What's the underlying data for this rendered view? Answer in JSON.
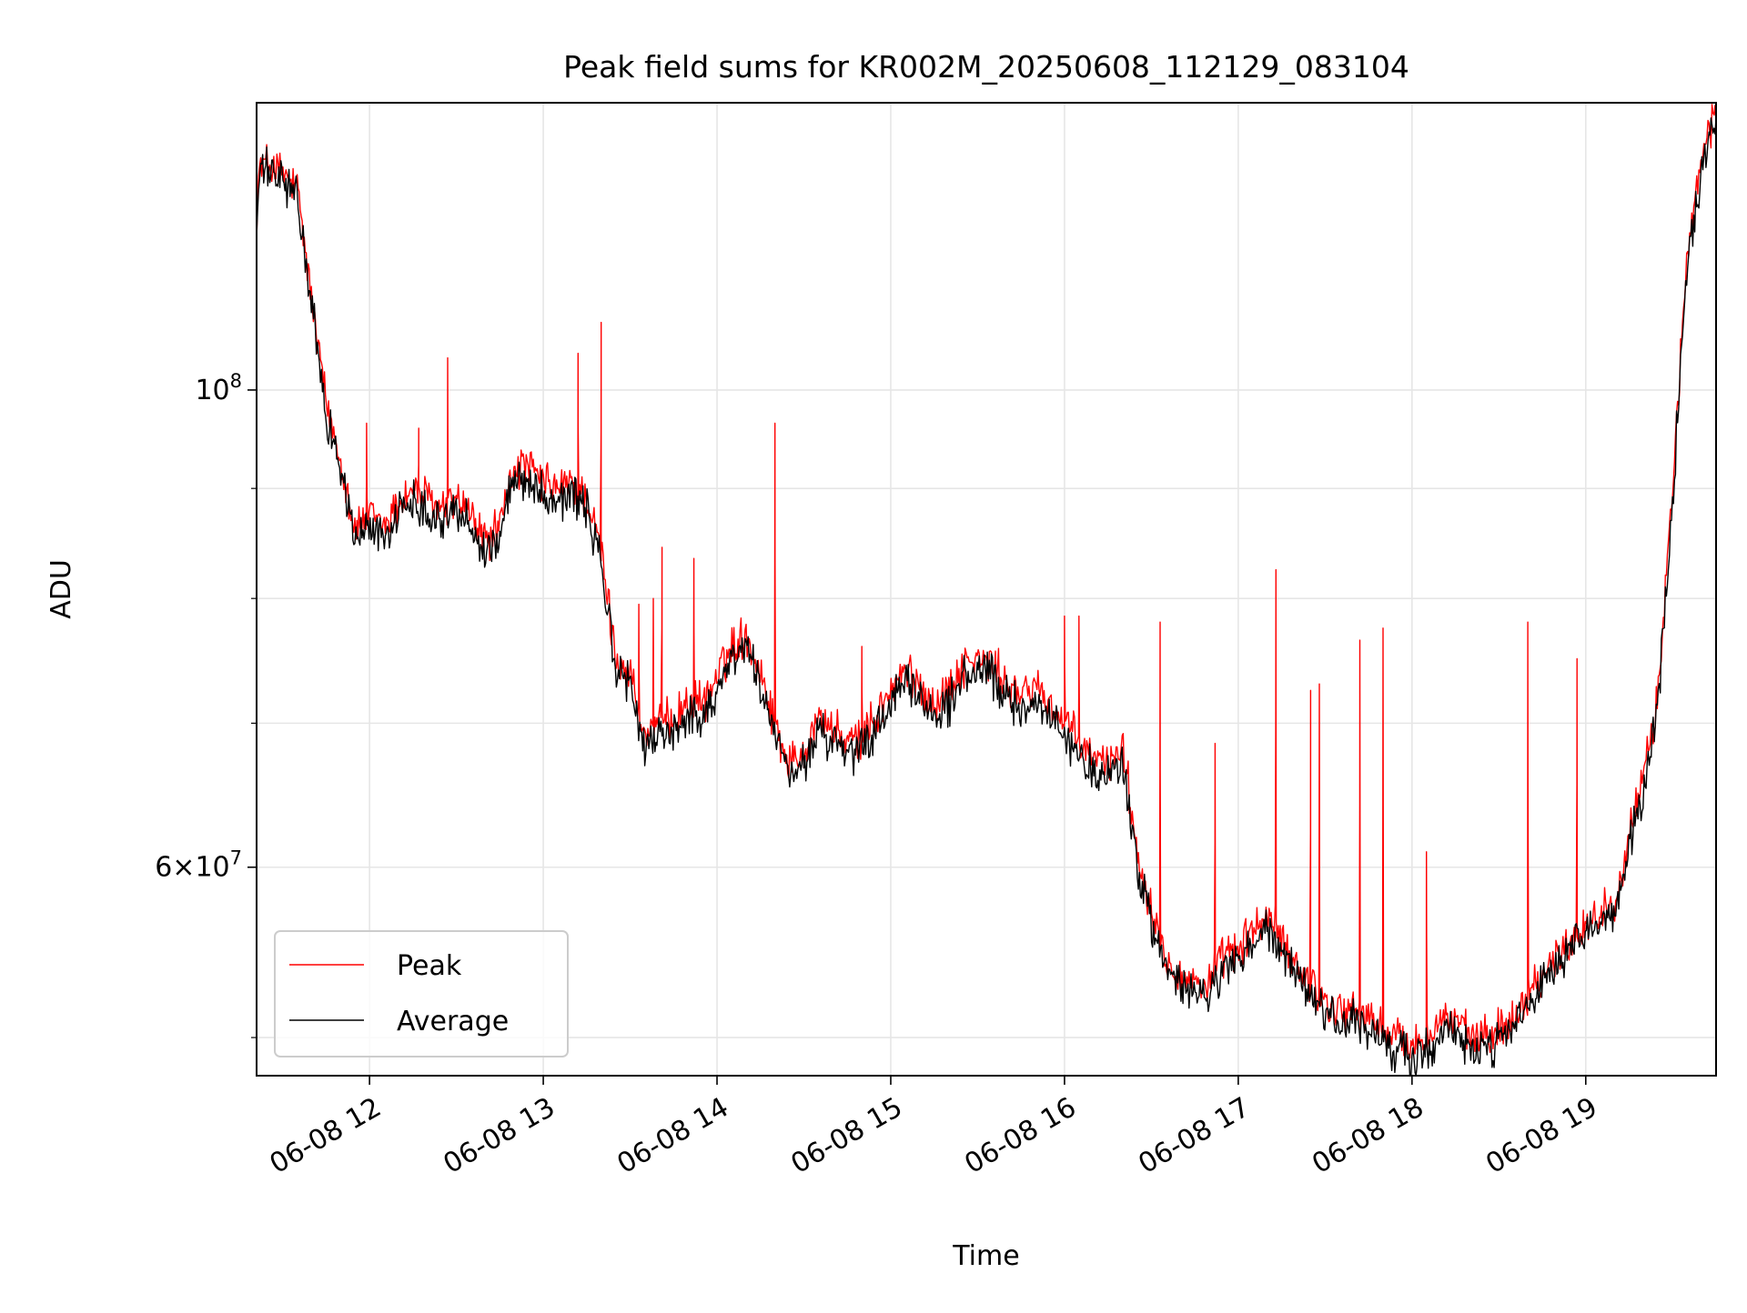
{
  "chart_data": {
    "type": "line",
    "title": "Peak field sums for KR002M_20250608_112129_083104",
    "xlabel": "Time",
    "ylabel": "ADU",
    "x_axis": "datetime",
    "x_range": [
      "2025-06-08T11:21:00",
      "2025-06-08T19:45:00"
    ],
    "x_ticks": [
      {
        "t": "2025-06-08T12:00",
        "label": "06-08 12"
      },
      {
        "t": "2025-06-08T13:00",
        "label": "06-08 13"
      },
      {
        "t": "2025-06-08T14:00",
        "label": "06-08 14"
      },
      {
        "t": "2025-06-08T15:00",
        "label": "06-08 15"
      },
      {
        "t": "2025-06-08T16:00",
        "label": "06-08 16"
      },
      {
        "t": "2025-06-08T17:00",
        "label": "06-08 17"
      },
      {
        "t": "2025-06-08T18:00",
        "label": "06-08 18"
      },
      {
        "t": "2025-06-08T19:00",
        "label": "06-08 19"
      }
    ],
    "y_scale": "log",
    "ylim": [
      48000000,
      136000000
    ],
    "y_major_ticks": [
      {
        "value": 100000000,
        "base": "10",
        "exp": "8"
      },
      {
        "value": 60000000,
        "base": "6×10",
        "exp": "7"
      }
    ],
    "y_minor_ticks": [
      50000000,
      70000000,
      80000000,
      90000000
    ],
    "grid": true,
    "legend_position": "lower-left",
    "series": [
      {
        "name": "Peak",
        "color": "#ff0000",
        "x": [
          "11:21",
          "11:22",
          "11:25",
          "11:30",
          "11:35",
          "11:40",
          "11:45",
          "11:50",
          "11:55",
          "12:00",
          "12:05",
          "12:10",
          "12:15",
          "12:20",
          "12:25",
          "12:30",
          "12:35",
          "12:40",
          "12:45",
          "12:50",
          "12:55",
          "13:00",
          "13:05",
          "13:10",
          "13:15",
          "13:20",
          "13:25",
          "13:30",
          "13:35",
          "13:40",
          "13:45",
          "13:50",
          "13:55",
          "14:00",
          "14:05",
          "14:10",
          "14:15",
          "14:20",
          "14:25",
          "14:30",
          "14:35",
          "14:40",
          "14:45",
          "14:50",
          "14:55",
          "15:00",
          "15:05",
          "15:10",
          "15:15",
          "15:20",
          "15:25",
          "15:30",
          "15:35",
          "15:40",
          "15:45",
          "15:50",
          "15:55",
          "16:00",
          "16:05",
          "16:10",
          "16:15",
          "16:20",
          "16:25",
          "16:30",
          "16:35",
          "16:40",
          "16:45",
          "16:50",
          "16:55",
          "17:00",
          "17:05",
          "17:10",
          "17:15",
          "17:20",
          "17:25",
          "17:30",
          "17:35",
          "17:40",
          "17:45",
          "17:50",
          "17:55",
          "18:00",
          "18:05",
          "18:10",
          "18:15",
          "18:20",
          "18:25",
          "18:30",
          "18:35",
          "18:40",
          "18:45",
          "18:50",
          "18:55",
          "19:00",
          "19:05",
          "19:10",
          "19:15",
          "19:20",
          "19:25",
          "19:30",
          "19:35",
          "19:40",
          "19:45"
        ],
        "values": [
          120000000,
          127000000,
          127500000,
          126000000,
          124000000,
          110000000,
          98500000,
          93000000,
          86000000,
          87500000,
          86500000,
          88500000,
          90000000,
          89000000,
          88000000,
          89000000,
          87500000,
          85000000,
          86500000,
          92000000,
          92000000,
          90500000,
          90000000,
          90500000,
          89000000,
          84000000,
          75000000,
          74000000,
          69000000,
          70000000,
          70500000,
          71500000,
          71500000,
          73500000,
          76000000,
          77000000,
          74000000,
          70000000,
          67000000,
          68000000,
          70500000,
          69500000,
          68500000,
          69000000,
          70500000,
          72500000,
          74000000,
          73000000,
          71500000,
          72500000,
          74500000,
          75000000,
          74500000,
          73000000,
          72000000,
          73000000,
          71500000,
          70000000,
          68500000,
          67500000,
          67000000,
          68500000,
          61000000,
          57500000,
          54500000,
          53500000,
          53000000,
          53000000,
          54500000,
          55000000,
          56000000,
          57000000,
          55500000,
          54000000,
          53000000,
          52000000,
          51500000,
          51500000,
          51000000,
          50500000,
          50000000,
          49500000,
          50000000,
          51000000,
          51000000,
          50000000,
          50000000,
          50500000,
          51000000,
          52500000,
          53500000,
          54500000,
          55500000,
          56500000,
          57000000,
          58000000,
          62000000,
          66000000,
          72000000,
          90000000,
          115000000,
          128000000,
          135000000
        ],
        "spikes": [
          {
            "x": "11:59",
            "value": 96500000
          },
          {
            "x": "12:17",
            "value": 96000000
          },
          {
            "x": "12:27",
            "value": 103500000
          },
          {
            "x": "13:12",
            "value": 104000000
          },
          {
            "x": "13:20",
            "value": 107500000
          },
          {
            "x": "13:33",
            "value": 79500000
          },
          {
            "x": "13:38",
            "value": 80000000
          },
          {
            "x": "13:41",
            "value": 84500000
          },
          {
            "x": "13:52",
            "value": 83500000
          },
          {
            "x": "14:20",
            "value": 96500000
          },
          {
            "x": "14:50",
            "value": 76000000
          },
          {
            "x": "16:00",
            "value": 78500000
          },
          {
            "x": "16:05",
            "value": 78500000
          },
          {
            "x": "16:33",
            "value": 78000000
          },
          {
            "x": "16:52",
            "value": 68500000
          },
          {
            "x": "17:13",
            "value": 82500000
          },
          {
            "x": "17:25",
            "value": 72500000
          },
          {
            "x": "17:28",
            "value": 73000000
          },
          {
            "x": "17:42",
            "value": 76500000
          },
          {
            "x": "17:50",
            "value": 77500000
          },
          {
            "x": "18:05",
            "value": 61000000
          },
          {
            "x": "18:40",
            "value": 78000000
          },
          {
            "x": "18:57",
            "value": 75000000
          }
        ]
      },
      {
        "name": "Average",
        "color": "#000000",
        "x": [
          "11:21",
          "11:22",
          "11:25",
          "11:30",
          "11:35",
          "11:40",
          "11:45",
          "11:50",
          "11:55",
          "12:00",
          "12:05",
          "12:10",
          "12:15",
          "12:20",
          "12:25",
          "12:30",
          "12:35",
          "12:40",
          "12:45",
          "12:50",
          "12:55",
          "13:00",
          "13:05",
          "13:10",
          "13:15",
          "13:20",
          "13:25",
          "13:30",
          "13:35",
          "13:40",
          "13:45",
          "13:50",
          "13:55",
          "14:00",
          "14:05",
          "14:10",
          "14:15",
          "14:20",
          "14:25",
          "14:30",
          "14:35",
          "14:40",
          "14:45",
          "14:50",
          "14:55",
          "15:00",
          "15:05",
          "15:10",
          "15:15",
          "15:20",
          "15:25",
          "15:30",
          "15:35",
          "15:40",
          "15:45",
          "15:50",
          "15:55",
          "16:00",
          "16:05",
          "16:10",
          "16:15",
          "16:20",
          "16:25",
          "16:30",
          "16:35",
          "16:40",
          "16:45",
          "16:50",
          "16:55",
          "17:00",
          "17:05",
          "17:10",
          "17:15",
          "17:20",
          "17:25",
          "17:30",
          "17:35",
          "17:40",
          "17:45",
          "17:50",
          "17:55",
          "18:00",
          "18:05",
          "18:10",
          "18:15",
          "18:20",
          "18:25",
          "18:30",
          "18:35",
          "18:40",
          "18:45",
          "18:50",
          "18:55",
          "19:00",
          "19:05",
          "19:10",
          "19:15",
          "19:20",
          "19:25",
          "19:30",
          "19:35",
          "19:40",
          "19:45"
        ],
        "values": [
          118500000,
          126000000,
          126500000,
          125000000,
          123000000,
          109000000,
          97500000,
          92000000,
          85000000,
          86500000,
          85500000,
          87500000,
          89000000,
          88000000,
          87000000,
          88000000,
          86500000,
          84000000,
          85500000,
          91000000,
          91000000,
          89500000,
          89000000,
          89500000,
          88000000,
          83000000,
          74000000,
          73000000,
          68000000,
          69000000,
          69500000,
          70500000,
          70500000,
          72500000,
          75000000,
          76000000,
          73000000,
          69000000,
          66000000,
          67000000,
          69500000,
          68500000,
          67500000,
          68000000,
          69500000,
          71500000,
          73000000,
          72000000,
          70500000,
          71500000,
          73500000,
          74000000,
          73500000,
          72000000,
          71000000,
          72000000,
          70500000,
          69000000,
          67500000,
          66500000,
          66000000,
          67500000,
          60000000,
          56500000,
          53800000,
          52800000,
          52300000,
          52300000,
          53800000,
          54200000,
          55200000,
          56200000,
          54800000,
          53300000,
          52300000,
          51300000,
          50800000,
          50800000,
          50300000,
          49800000,
          49300000,
          48800000,
          49300000,
          50300000,
          50300000,
          49300000,
          49300000,
          49800000,
          50300000,
          51800000,
          52800000,
          53800000,
          54800000,
          55800000,
          56300000,
          57300000,
          61200000,
          65200000,
          71200000,
          88500000,
          113500000,
          126500000,
          134000000
        ],
        "spikes": []
      }
    ]
  }
}
